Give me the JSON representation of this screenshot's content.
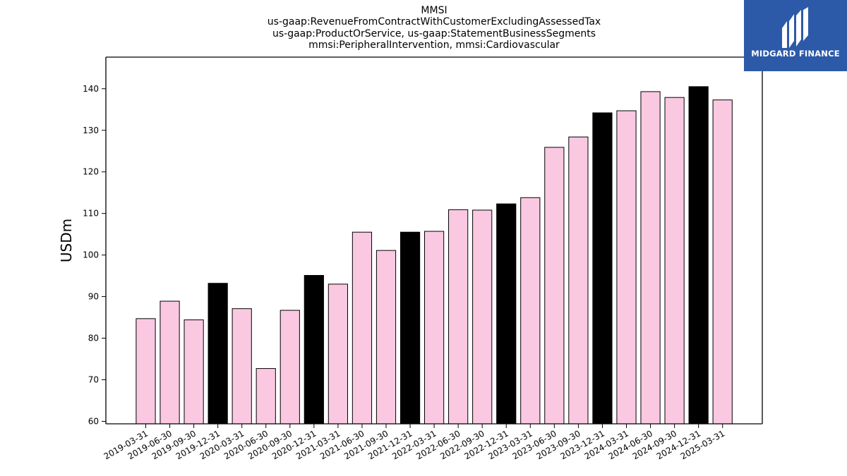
{
  "chart_data": {
    "type": "bar",
    "title_lines": [
      "MMSI",
      "us-gaap:RevenueFromContractWithCustomerExcludingAssessedTax",
      "us-gaap:ProductOrService, us-gaap:StatementBusinessSegments",
      "mmsi:PeripheralIntervention, mmsi:Cardiovascular"
    ],
    "xlabel": "",
    "ylabel": "USDm",
    "ylim": [
      59.4,
      147.6
    ],
    "yticks": [
      60,
      70,
      80,
      90,
      100,
      110,
      120,
      130,
      140
    ],
    "categories": [
      "2019-03-31",
      "2019-06-30",
      "2019-09-30",
      "2019-12-31",
      "2020-03-31",
      "2020-06-30",
      "2020-09-30",
      "2020-12-31",
      "2021-03-31",
      "2021-06-30",
      "2021-09-30",
      "2021-12-31",
      "2022-03-31",
      "2022-06-30",
      "2022-09-30",
      "2022-12-31",
      "2023-03-31",
      "2023-06-30",
      "2023-09-30",
      "2023-12-31",
      "2024-03-31",
      "2024-06-30",
      "2024-09-30",
      "2024-12-31",
      "2025-03-31"
    ],
    "values": [
      84.7,
      88.9,
      84.4,
      93.2,
      87.1,
      72.7,
      86.7,
      95.1,
      93.0,
      105.5,
      101.1,
      105.5,
      105.7,
      110.9,
      110.8,
      112.3,
      113.8,
      125.9,
      128.4,
      134.2,
      134.7,
      139.3,
      137.9,
      140.5,
      137.3
    ],
    "bar_colors": [
      "#fbc8e2",
      "#fbc8e2",
      "#fbc8e2",
      "#000000",
      "#fbc8e2",
      "#fbc8e2",
      "#fbc8e2",
      "#000000",
      "#fbc8e2",
      "#fbc8e2",
      "#fbc8e2",
      "#000000",
      "#fbc8e2",
      "#fbc8e2",
      "#fbc8e2",
      "#000000",
      "#fbc8e2",
      "#fbc8e2",
      "#fbc8e2",
      "#000000",
      "#fbc8e2",
      "#fbc8e2",
      "#fbc8e2",
      "#000000",
      "#fbc8e2"
    ],
    "grid": false,
    "legend": "none"
  },
  "logo": {
    "text": "MIDGARD FINANCE",
    "background": "#2d5aa8"
  }
}
